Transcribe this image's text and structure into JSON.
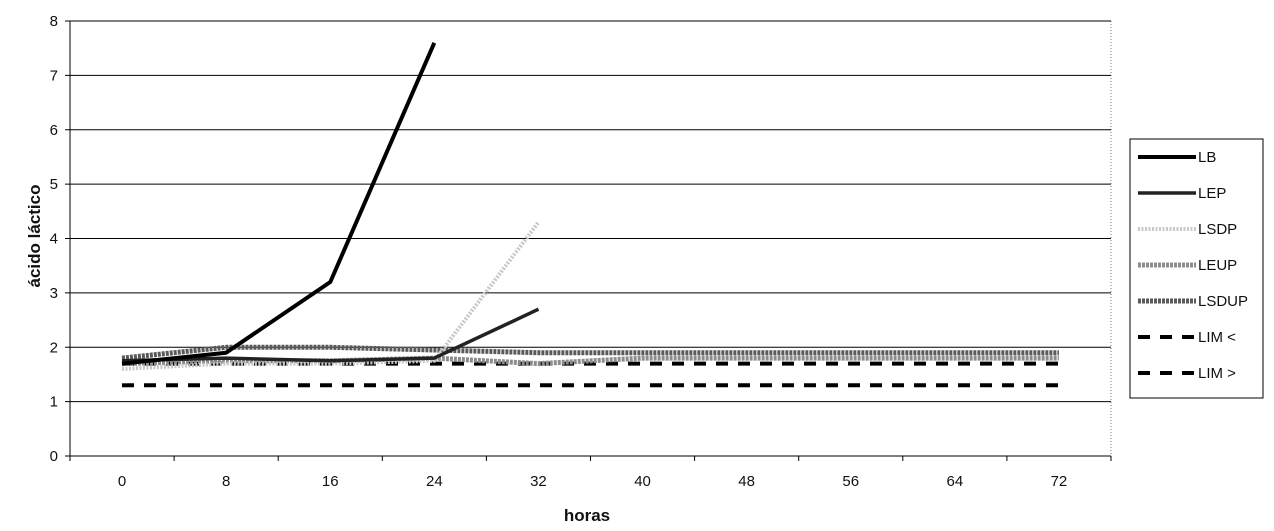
{
  "chart_data": {
    "type": "line",
    "xlabel": "horas",
    "ylabel": "ácido láctico",
    "x_categories": [
      "0",
      "8",
      "16",
      "24",
      "32",
      "40",
      "48",
      "56",
      "64",
      "72"
    ],
    "ylim": [
      0,
      8
    ],
    "y_ticks": [
      "0",
      "1",
      "2",
      "3",
      "4",
      "5",
      "6",
      "7",
      "8"
    ],
    "grid": true,
    "legend_position": "right",
    "series": [
      {
        "name": "LB",
        "style": "solid-black-thick",
        "color": "#000000",
        "points": [
          [
            0,
            1.7
          ],
          [
            8,
            1.9
          ],
          [
            16,
            3.2
          ],
          [
            24,
            7.6
          ]
        ]
      },
      {
        "name": "LEP",
        "style": "solid-dark",
        "color": "#222222",
        "points": [
          [
            0,
            1.75
          ],
          [
            8,
            1.8
          ],
          [
            16,
            1.75
          ],
          [
            24,
            1.8
          ],
          [
            32,
            2.7
          ]
        ]
      },
      {
        "name": "LSDP",
        "style": "hatched-light",
        "color": "#c8c8c8",
        "points": [
          [
            0,
            1.6
          ],
          [
            8,
            1.7
          ],
          [
            16,
            1.7
          ],
          [
            24,
            1.75
          ],
          [
            32,
            4.3
          ]
        ]
      },
      {
        "name": "LEUP",
        "style": "hatched-medium",
        "color": "#8c8c8c",
        "points": [
          [
            0,
            1.7
          ],
          [
            8,
            1.75
          ],
          [
            16,
            1.75
          ],
          [
            24,
            1.8
          ],
          [
            32,
            1.7
          ],
          [
            40,
            1.8
          ],
          [
            48,
            1.8
          ],
          [
            56,
            1.8
          ],
          [
            64,
            1.8
          ],
          [
            72,
            1.8
          ]
        ]
      },
      {
        "name": "LSDUP",
        "style": "hatched-dark",
        "color": "#5a5a5a",
        "points": [
          [
            0,
            1.8
          ],
          [
            8,
            2.0
          ],
          [
            16,
            2.0
          ],
          [
            24,
            1.95
          ],
          [
            32,
            1.9
          ],
          [
            40,
            1.9
          ],
          [
            48,
            1.9
          ],
          [
            56,
            1.9
          ],
          [
            64,
            1.9
          ],
          [
            72,
            1.9
          ]
        ]
      },
      {
        "name": "LIM <",
        "style": "dashed",
        "color": "#000000",
        "points": [
          [
            0,
            1.7
          ],
          [
            72,
            1.7
          ]
        ]
      },
      {
        "name": "LIM >",
        "style": "dashed",
        "color": "#000000",
        "points": [
          [
            0,
            1.3
          ],
          [
            72,
            1.3
          ]
        ]
      }
    ]
  }
}
